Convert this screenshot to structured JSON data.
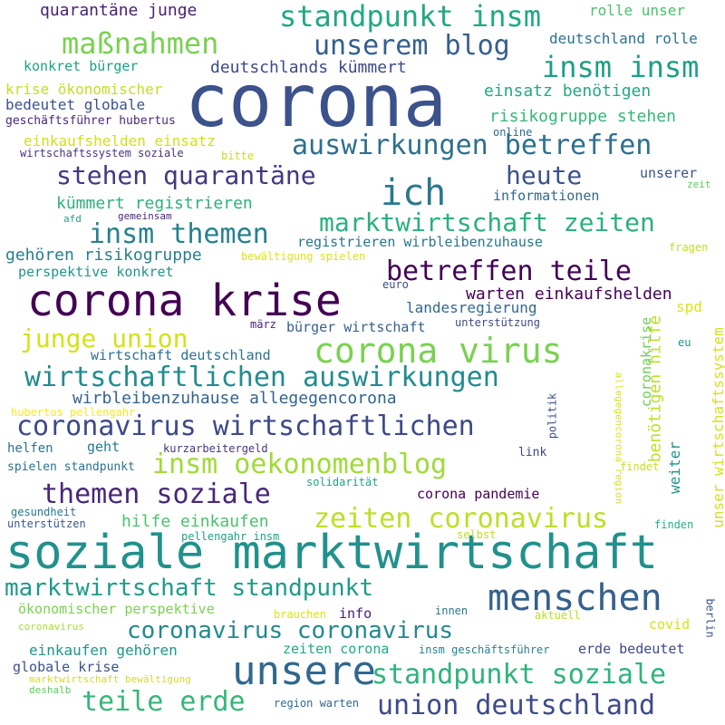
{
  "words": [
    {
      "text": "corona",
      "color": "#3b528b"
    },
    {
      "text": "soziale marktwirtschaft",
      "color": "#21918c"
    },
    {
      "text": "corona krise",
      "color": "#440154"
    },
    {
      "text": "unsere",
      "color": "#31688e"
    },
    {
      "text": "menschen",
      "color": "#35608d"
    },
    {
      "text": "corona virus",
      "color": "#7ad151"
    },
    {
      "text": "ich",
      "color": "#2a788e"
    },
    {
      "text": "standpunkt insm",
      "color": "#22a884"
    },
    {
      "text": "insm insm",
      "color": "#1f9e89"
    },
    {
      "text": "maßnahmen",
      "color": "#7ad151"
    },
    {
      "text": "unserem blog",
      "color": "#355f8d"
    },
    {
      "text": "auswirkungen betreffen",
      "color": "#2d708e"
    },
    {
      "text": "wirtschaftlichen auswirkungen",
      "color": "#228c8d"
    },
    {
      "text": "coronavirus wirtschaftlichen",
      "color": "#3e4989"
    },
    {
      "text": "insm oekonomenblog",
      "color": "#a0da39"
    },
    {
      "text": "themen soziale",
      "color": "#482878"
    },
    {
      "text": "zeiten coronavirus",
      "color": "#bddf26"
    },
    {
      "text": "marktwirtschaft standpunkt",
      "color": "#1e9b8a"
    },
    {
      "text": "coronavirus coronavirus",
      "color": "#23898e"
    },
    {
      "text": "standpunkt soziale",
      "color": "#2fb47c"
    },
    {
      "text": "teile erde",
      "color": "#35b779"
    },
    {
      "text": "union deutschland",
      "color": "#3e4a89"
    },
    {
      "text": "marktwirtschaft zeiten",
      "color": "#2ab07f"
    },
    {
      "text": "insm themen",
      "color": "#26818e"
    },
    {
      "text": "betreffen teile",
      "color": "#440154"
    },
    {
      "text": "junge union",
      "color": "#d2e21b"
    },
    {
      "text": "stehen quarantäne",
      "color": "#453781"
    },
    {
      "text": "heute",
      "color": "#3b528b"
    },
    {
      "text": "quarantäne junge",
      "color": "#482173"
    },
    {
      "text": "deutschlands kümmert",
      "color": "#3e4a89"
    },
    {
      "text": "einsatz benötigen",
      "color": "#22a884"
    },
    {
      "text": "risikogruppe stehen",
      "color": "#35b779"
    },
    {
      "text": "rolle unser",
      "color": "#4ac16d"
    },
    {
      "text": "deutschland rolle",
      "color": "#2c728e"
    },
    {
      "text": "konkret bürger",
      "color": "#1fa187"
    },
    {
      "text": "krise ökonomischer",
      "color": "#c2df23"
    },
    {
      "text": "bedeutet globale",
      "color": "#3b528b"
    },
    {
      "text": "geschäftsführer hubertus",
      "color": "#482878"
    },
    {
      "text": "einkaufshelden einsatz",
      "color": "#d0e11c"
    },
    {
      "text": "wirtschaftssystem soziale",
      "color": "#46337e"
    },
    {
      "text": "bitte",
      "color": "#c8e020"
    },
    {
      "text": "online",
      "color": "#31688e"
    },
    {
      "text": "unserer",
      "color": "#3b528b"
    },
    {
      "text": "zeit",
      "color": "#5ec962"
    },
    {
      "text": "kümmert registrieren",
      "color": "#2db27d"
    },
    {
      "text": "informationen",
      "color": "#31688e"
    },
    {
      "text": "afd",
      "color": "#1fa187"
    },
    {
      "text": "gemeinsam",
      "color": "#482878"
    },
    {
      "text": "registrieren wirbleibenzuhause",
      "color": "#2a768e"
    },
    {
      "text": "fragen",
      "color": "#c2df23"
    },
    {
      "text": "gehören risikogruppe",
      "color": "#277f8e"
    },
    {
      "text": "bewältigung spielen",
      "color": "#dde318"
    },
    {
      "text": "perspektive konkret",
      "color": "#1f968b"
    },
    {
      "text": "euro",
      "color": "#3e4989"
    },
    {
      "text": "landesregierung",
      "color": "#31688e"
    },
    {
      "text": "warten einkaufshelden",
      "color": "#440154"
    },
    {
      "text": "spd",
      "color": "#dde318"
    },
    {
      "text": "märz",
      "color": "#482173"
    },
    {
      "text": "bürger wirtschaft",
      "color": "#355f8d"
    },
    {
      "text": "unterstützung",
      "color": "#3e4989"
    },
    {
      "text": "wirtschaft deutschland",
      "color": "#2d708e"
    },
    {
      "text": "benötigen hilfe",
      "color": "#bddf26"
    },
    {
      "text": "coronakrise",
      "color": "#6ccd5a"
    },
    {
      "text": "eu",
      "color": "#21918c"
    },
    {
      "text": "wirbleibenzuhause allegegencorona",
      "color": "#33638d"
    },
    {
      "text": "hubertus pellengahr",
      "color": "#fde725"
    },
    {
      "text": "politik",
      "color": "#3b528b"
    },
    {
      "text": "allegegencorona region",
      "color": "#d8e219"
    },
    {
      "text": "unser wirtschaftssystem",
      "color": "#d2e21b"
    },
    {
      "text": "helfen",
      "color": "#2c728e"
    },
    {
      "text": "geht",
      "color": "#2a788e"
    },
    {
      "text": "kurzarbeitergeld",
      "color": "#46337e"
    },
    {
      "text": "link",
      "color": "#404387"
    },
    {
      "text": "findet",
      "color": "#c8e020"
    },
    {
      "text": "weiter",
      "color": "#21918c"
    },
    {
      "text": "spielen standpunkt",
      "color": "#2c728e"
    },
    {
      "text": "solidarität",
      "color": "#20a386"
    },
    {
      "text": "corona pandemie",
      "color": "#440154"
    },
    {
      "text": "gesundheit",
      "color": "#2a768e"
    },
    {
      "text": "unterstützen",
      "color": "#38598c"
    },
    {
      "text": "hilfe einkaufen",
      "color": "#4ac16d"
    },
    {
      "text": "finden",
      "color": "#29af7f"
    },
    {
      "text": "pellengahr insm",
      "color": "#1fa187"
    },
    {
      "text": "selbst",
      "color": "#bddf26"
    },
    {
      "text": "ökonomischer perspektive",
      "color": "#7ad151"
    },
    {
      "text": "berlin",
      "color": "#3b528b"
    },
    {
      "text": "brauchen",
      "color": "#d8e219"
    },
    {
      "text": "innen",
      "color": "#2a788e"
    },
    {
      "text": "info",
      "color": "#481f71"
    },
    {
      "text": "aktuell",
      "color": "#b8de29"
    },
    {
      "text": "covid",
      "color": "#d2e21b"
    },
    {
      "text": "coronavirus",
      "color": "#addc30"
    },
    {
      "text": "einkaufen gehören",
      "color": "#1f968b"
    },
    {
      "text": "erde bedeutet",
      "color": "#3e4989"
    },
    {
      "text": "zeiten corona",
      "color": "#22a884"
    },
    {
      "text": "insm geschäftsführer",
      "color": "#27808e"
    },
    {
      "text": "globale krise",
      "color": "#3b528b"
    },
    {
      "text": "marktwirtschaft bewältigung",
      "color": "#d0e11c"
    },
    {
      "text": "deshalb",
      "color": "#5ec962"
    },
    {
      "text": "region warten",
      "color": "#31688e"
    }
  ]
}
